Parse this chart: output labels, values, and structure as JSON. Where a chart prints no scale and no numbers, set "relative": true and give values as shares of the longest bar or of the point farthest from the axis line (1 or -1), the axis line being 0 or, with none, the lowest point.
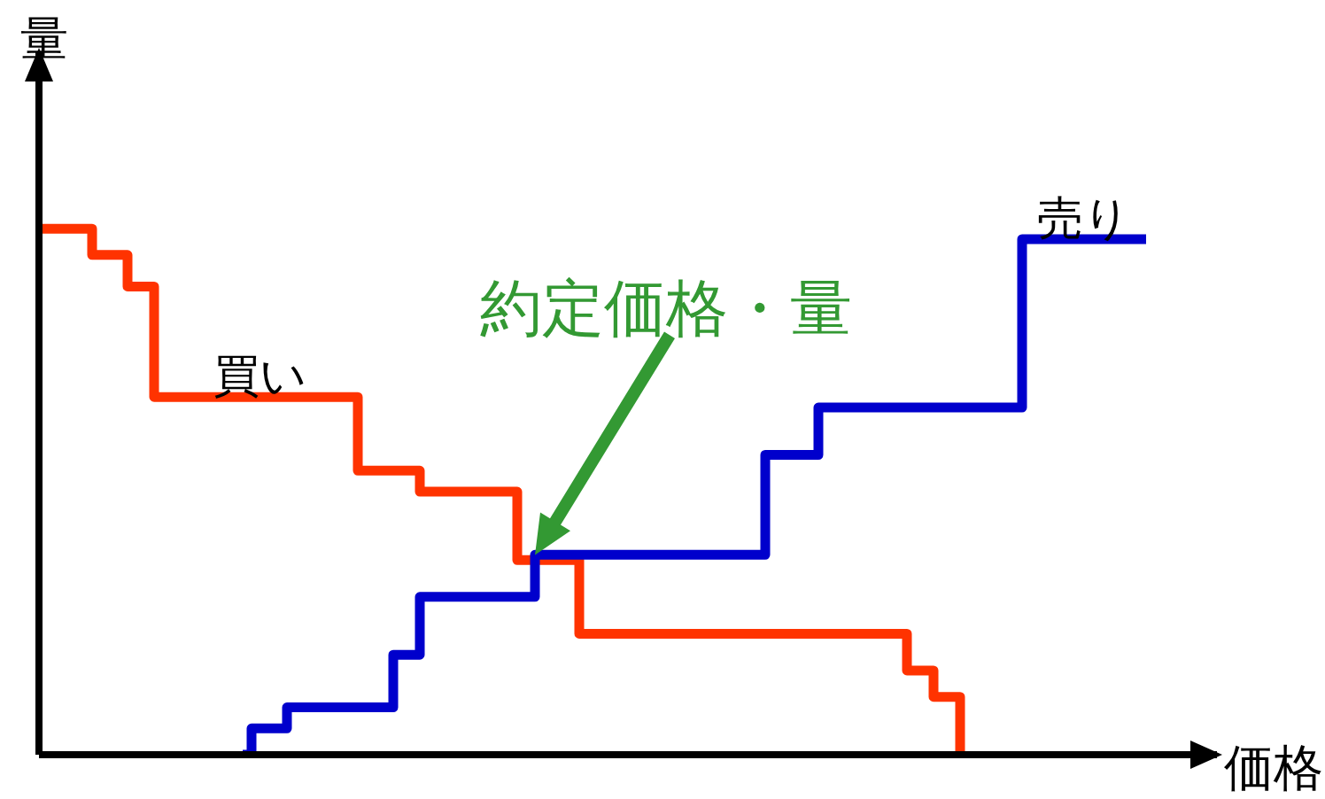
{
  "chart_data": {
    "type": "step",
    "relative": true,
    "xlabel": "価格",
    "ylabel": "量",
    "annotations": [
      "約定価格・量"
    ],
    "categories": [
      null,
      null,
      null,
      null,
      null,
      null,
      null,
      null,
      null,
      null,
      null,
      null,
      null,
      null,
      null,
      null,
      null,
      null,
      null,
      null,
      null,
      null,
      null,
      null,
      null,
      null,
      null,
      null,
      null,
      null,
      null,
      null,
      null,
      null,
      null,
      null,
      null,
      null,
      null,
      null,
      null,
      null,
      null,
      null,
      null,
      null,
      null,
      null,
      null,
      null,
      null,
      null,
      null,
      null,
      null,
      null,
      null,
      null,
      null,
      null,
      null,
      null,
      null,
      null,
      null,
      null,
      null,
      null,
      null,
      null,
      null,
      null,
      null,
      null,
      null,
      null,
      null,
      null,
      null,
      null,
      null,
      null,
      null,
      null,
      null,
      null,
      null,
      null,
      null,
      null,
      null,
      null,
      null,
      null,
      null,
      null,
      null,
      null,
      null,
      null,
      null,
      null,
      null,
      null,
      null,
      null,
      null,
      null,
      null,
      null,
      null,
      null,
      null,
      null,
      null,
      null,
      null,
      null,
      null,
      null,
      null,
      null,
      null,
      null,
      null,
      null,
      null,
      null,
      null,
      null,
      null,
      null,
      null,
      null
    ],
    "series": [
      {
        "name": "買い",
        "color": "#ff3300",
        "values": [
          1,
          1,
          1,
          1,
          1,
          1,
          0.95,
          0.95,
          0.95,
          0.95,
          0.89,
          0.89,
          0.89,
          0.68,
          0.68,
          0.68,
          0.68,
          0.68,
          0.68,
          0.68,
          0.68,
          0.68,
          0.68,
          0.68,
          0.68,
          0.68,
          0.68,
          0.68,
          0.68,
          0.68,
          0.68,
          0.68,
          0.68,
          0.68,
          0.68,
          0.68,
          0.54,
          0.54,
          0.54,
          0.54,
          0.54,
          0.54,
          0.54,
          0.5,
          0.5,
          0.5,
          0.5,
          0.5,
          0.5,
          0.5,
          0.5,
          0.5,
          0.5,
          0.5,
          0.37,
          0.37,
          0.37,
          0.37,
          0.37,
          0.37,
          0.37,
          0.23,
          0.23,
          0.23,
          0.23,
          0.23,
          0.23,
          0.23,
          0.23,
          0.23,
          0.23,
          0.23,
          0.23,
          0.23,
          0.23,
          0.23,
          0.23,
          0.23,
          0.23,
          0.23,
          0.23,
          0.23,
          0.23,
          0.23,
          0.23,
          0.23,
          0.23,
          0.23,
          0.23,
          0.23,
          0.23,
          0.23,
          0.23,
          0.23,
          0.23,
          0.23,
          0.23,
          0.23,
          0.16,
          0.16,
          0.16,
          0.11,
          0.11,
          0.11,
          0,
          null,
          null,
          null,
          null,
          null,
          null,
          null,
          null,
          null,
          null,
          null,
          null,
          null,
          null,
          null,
          null,
          null,
          null,
          null,
          null,
          null,
          null,
          null,
          null,
          null,
          null,
          null,
          null,
          null
        ]
      },
      {
        "name": "売り",
        "color": "#0000cc",
        "values": [
          null,
          null,
          null,
          null,
          null,
          null,
          null,
          null,
          null,
          null,
          null,
          null,
          null,
          null,
          null,
          null,
          null,
          null,
          null,
          null,
          null,
          null,
          null,
          0,
          0.05,
          0.05,
          0.05,
          0.05,
          0.09,
          0.09,
          0.09,
          0.09,
          0.09,
          0.09,
          0.09,
          0.09,
          0.09,
          0.09,
          0.09,
          0.09,
          0.19,
          0.19,
          0.19,
          0.3,
          0.3,
          0.3,
          0.3,
          0.3,
          0.3,
          0.3,
          0.3,
          0.3,
          0.3,
          0.3,
          0.3,
          0.3,
          0.38,
          0.38,
          0.38,
          0.38,
          0.38,
          0.38,
          0.38,
          0.38,
          0.38,
          0.38,
          0.38,
          0.38,
          0.38,
          0.38,
          0.38,
          0.38,
          0.38,
          0.38,
          0.38,
          0.38,
          0.38,
          0.38,
          0.38,
          0.38,
          0.38,
          0.38,
          0.57,
          0.57,
          0.57,
          0.57,
          0.57,
          0.57,
          0.66,
          0.66,
          0.66,
          0.66,
          0.66,
          0.66,
          0.66,
          0.66,
          0.66,
          0.66,
          0.66,
          0.66,
          0.66,
          0.66,
          0.66,
          0.66,
          0.66,
          0.66,
          0.66,
          0.66,
          0.66,
          0.66,
          0.66,
          0.98,
          0.98,
          0.98,
          0.98,
          0.98,
          0.98,
          0.98,
          0.98,
          0.98,
          0.98,
          0.98,
          0.98,
          0.98,
          0.98,
          0.98,
          null,
          null,
          null,
          null,
          null,
          null,
          null,
          null
        ]
      }
    ]
  }
}
